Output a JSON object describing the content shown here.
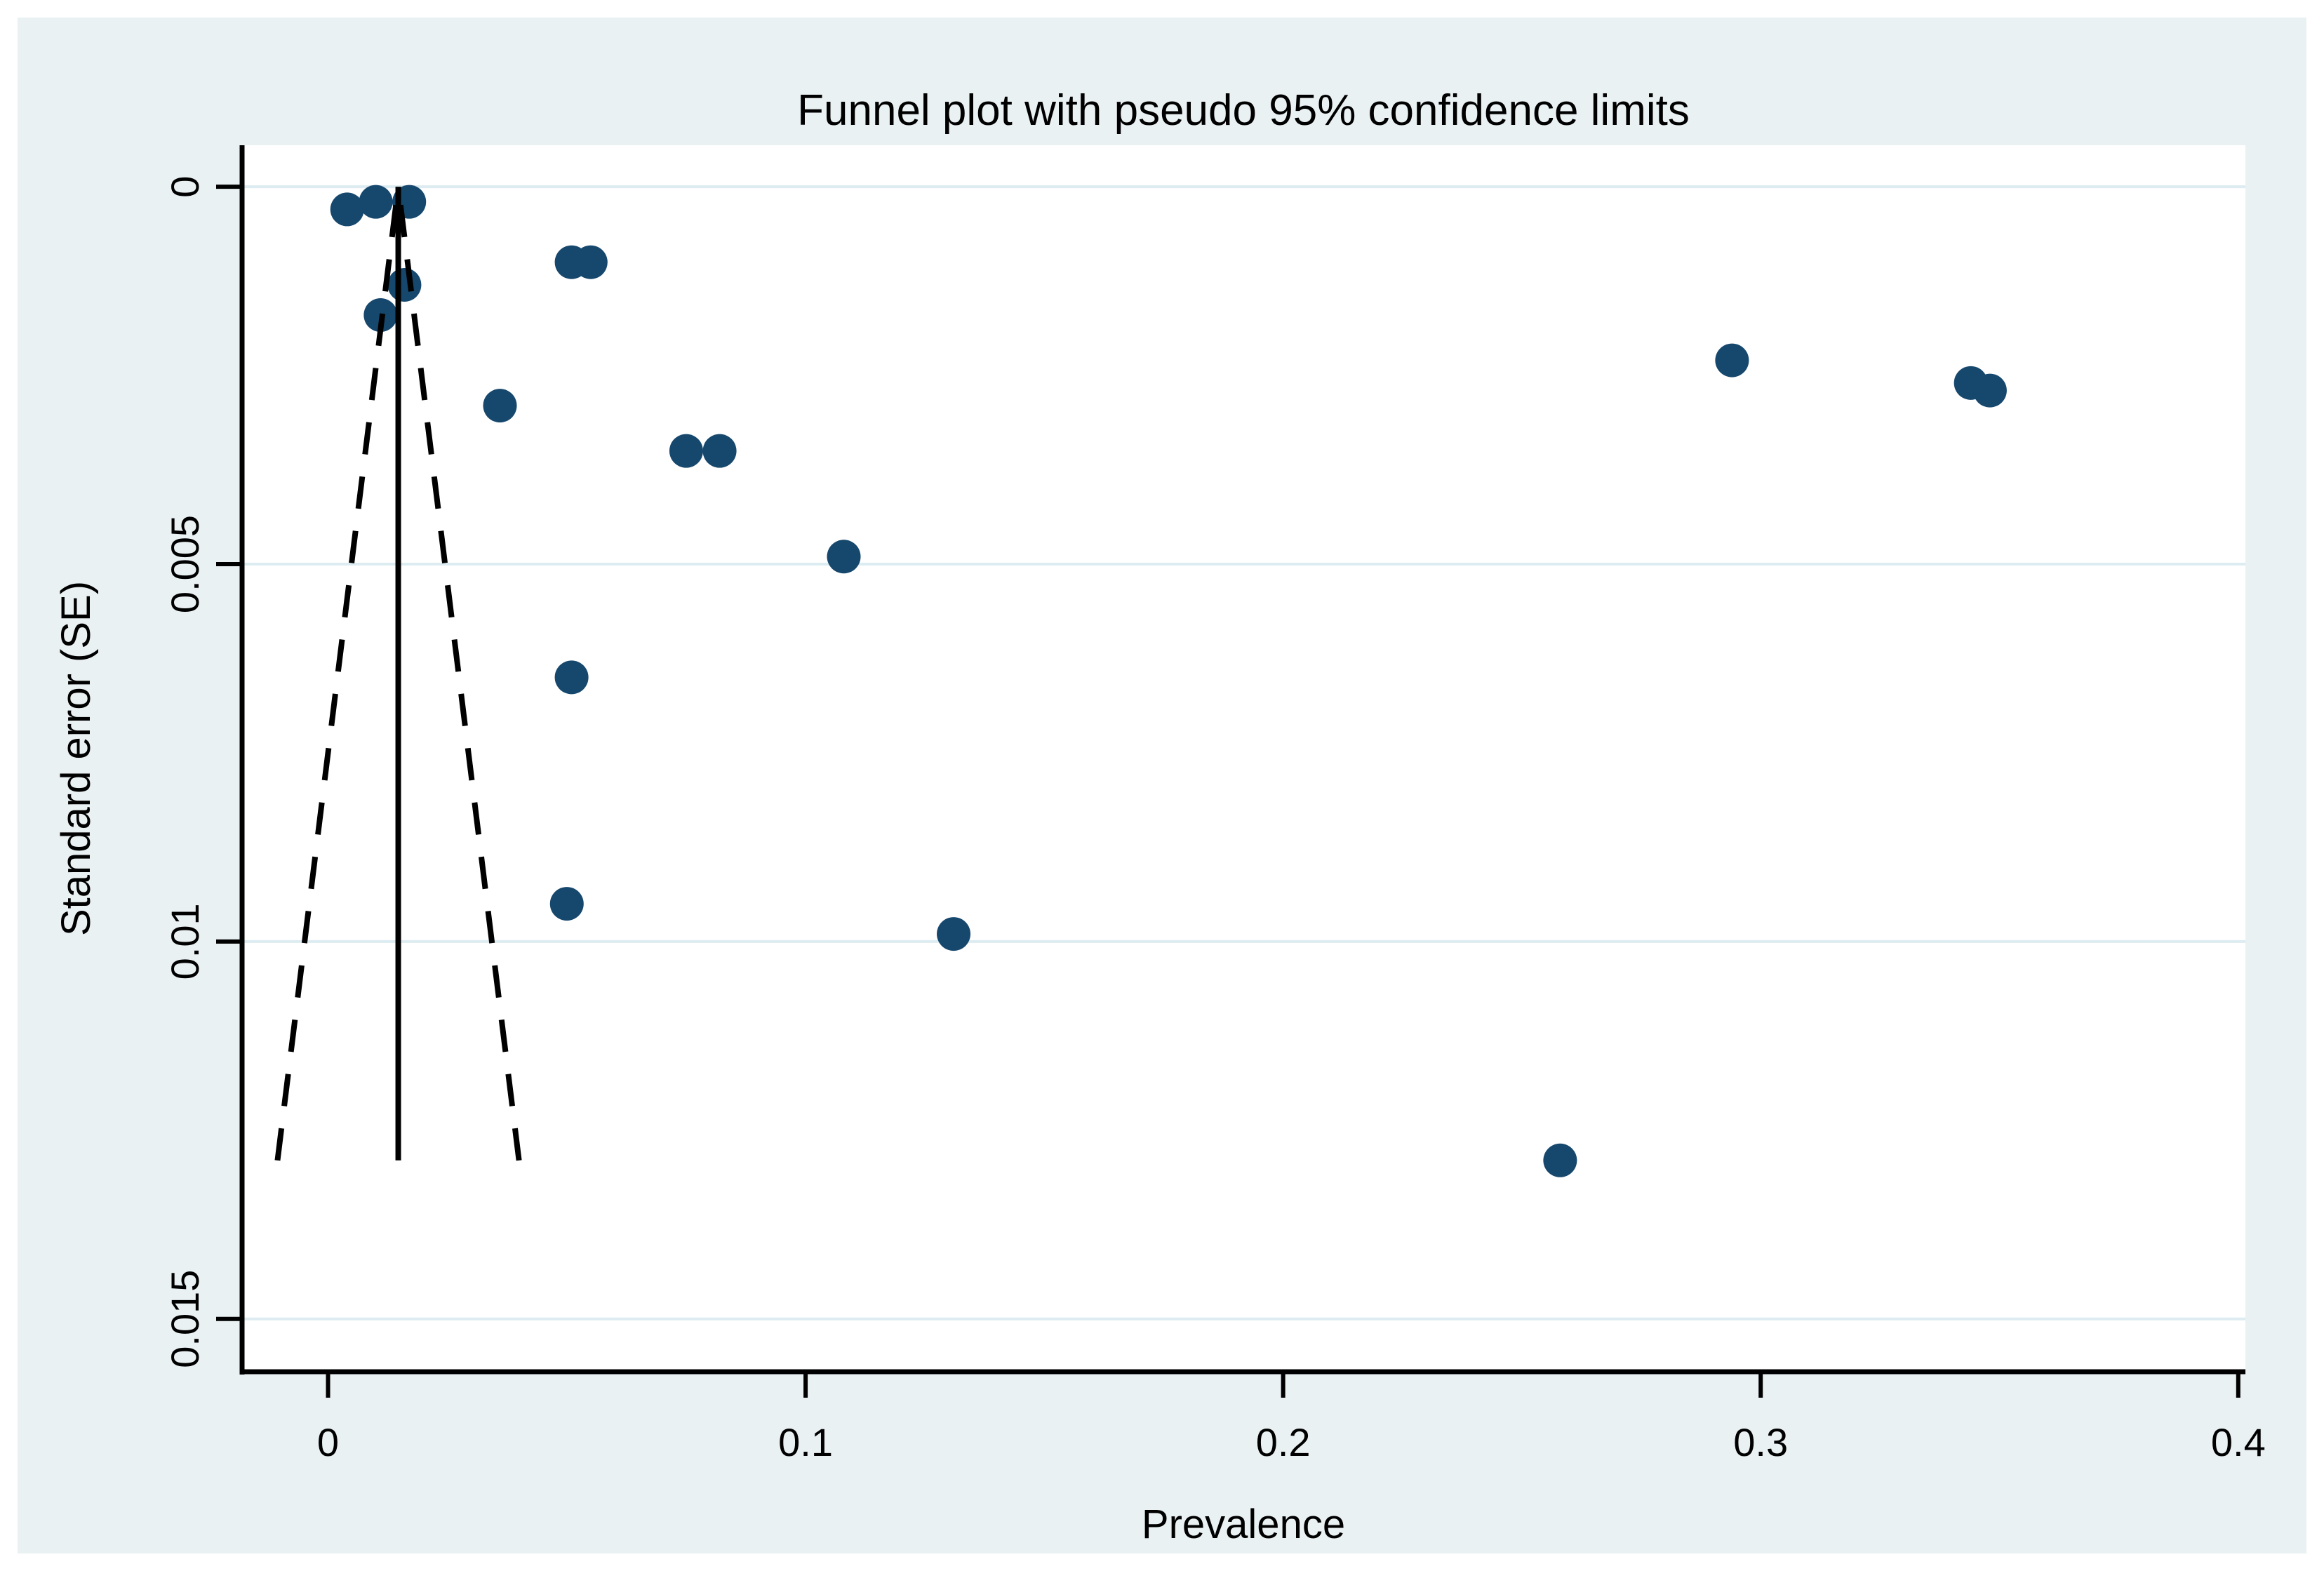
{
  "figure": {
    "background_color": "#eaf1f3",
    "plot_background_color": "#ffffff",
    "gridline_color": "#ddecf1",
    "axis_color": "#000000",
    "marker_color": "#16476d",
    "funnel_line_color": "#000000"
  },
  "chart_data": {
    "type": "scatter",
    "title": "Funnel plot with pseudo 95% confidence limits",
    "xlabel": "Prevalence",
    "ylabel": "Standard error (SE)",
    "x_ticks": [
      0,
      0.1,
      0.2,
      0.3,
      0.4
    ],
    "x_tick_labels": [
      "0",
      "0.1",
      "0.2",
      "0.3",
      "0.4"
    ],
    "y_ticks": [
      0,
      0.005,
      0.01,
      0.015
    ],
    "y_tick_labels": [
      "0",
      "0.005",
      "0.01",
      "0.015"
    ],
    "xlim": [
      -0.018,
      0.4015
    ],
    "ylim": [
      -0.00055,
      0.0157
    ],
    "y_axis_inverted_standard_error": true,
    "grid": "horizontal",
    "legend": "none",
    "points": [
      {
        "x": 0.004,
        "se": 0.0003
      },
      {
        "x": 0.01,
        "se": 0.0002
      },
      {
        "x": 0.017,
        "se": 0.0002
      },
      {
        "x": 0.016,
        "se": 0.0013
      },
      {
        "x": 0.011,
        "se": 0.0017
      },
      {
        "x": 0.051,
        "se": 0.001
      },
      {
        "x": 0.055,
        "se": 0.001
      },
      {
        "x": 0.294,
        "se": 0.0023
      },
      {
        "x": 0.344,
        "se": 0.0026
      },
      {
        "x": 0.348,
        "se": 0.0027
      },
      {
        "x": 0.036,
        "se": 0.0029
      },
      {
        "x": 0.075,
        "se": 0.0035
      },
      {
        "x": 0.082,
        "se": 0.0035
      },
      {
        "x": 0.108,
        "se": 0.0049
      },
      {
        "x": 0.051,
        "se": 0.0065
      },
      {
        "x": 0.05,
        "se": 0.0095
      },
      {
        "x": 0.131,
        "se": 0.0099
      },
      {
        "x": 0.258,
        "se": 0.0129
      }
    ],
    "funnel": {
      "pooled_estimate": 0.0147,
      "z_value": 1.96,
      "se_top": 0.0,
      "se_bottom": 0.0129,
      "ci_lower_at_bottom": -0.0106,
      "ci_upper_at_bottom": 0.04,
      "center_line_style": "solid",
      "limit_line_style": "dashed"
    }
  }
}
